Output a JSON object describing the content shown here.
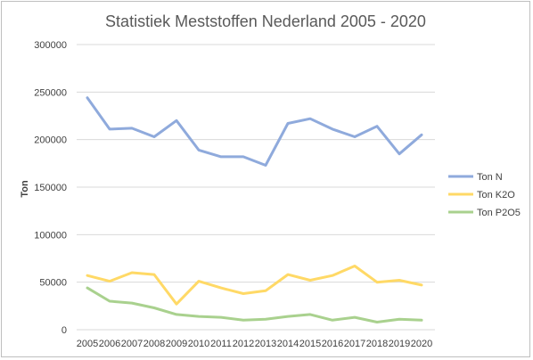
{
  "chart_data": {
    "type": "line",
    "title": "Statistiek Meststoffen Nederland 2005 - 2020",
    "xlabel": "",
    "ylabel": "Ton",
    "ylim": [
      0,
      300000
    ],
    "yticks": [
      "0",
      "50000",
      "100000",
      "150000",
      "200000",
      "250000",
      "300000"
    ],
    "categories": [
      "2005",
      "2006",
      "2007",
      "2008",
      "2009",
      "2010",
      "2011",
      "2012",
      "2013",
      "2014",
      "2015",
      "2016",
      "2017",
      "2018",
      "2019",
      "2020"
    ],
    "grid": true,
    "legend_position": "right",
    "series": [
      {
        "name": "Ton N",
        "color": "#8faadc",
        "values": [
          244000,
          211000,
          212000,
          203000,
          220000,
          189000,
          182000,
          182000,
          173000,
          217000,
          222000,
          211000,
          203000,
          214000,
          185000,
          205000
        ]
      },
      {
        "name": "Ton K2O",
        "color": "#ffd966",
        "values": [
          57000,
          51000,
          60000,
          58000,
          27000,
          51000,
          44000,
          38000,
          41000,
          58000,
          52000,
          57000,
          67000,
          50000,
          52000,
          47000
        ]
      },
      {
        "name": "Ton P2O5",
        "color": "#a9d18e",
        "values": [
          44000,
          30000,
          28000,
          23000,
          16000,
          14000,
          13000,
          10000,
          11000,
          14000,
          16000,
          10000,
          13000,
          8000,
          11000,
          10000
        ]
      }
    ]
  }
}
